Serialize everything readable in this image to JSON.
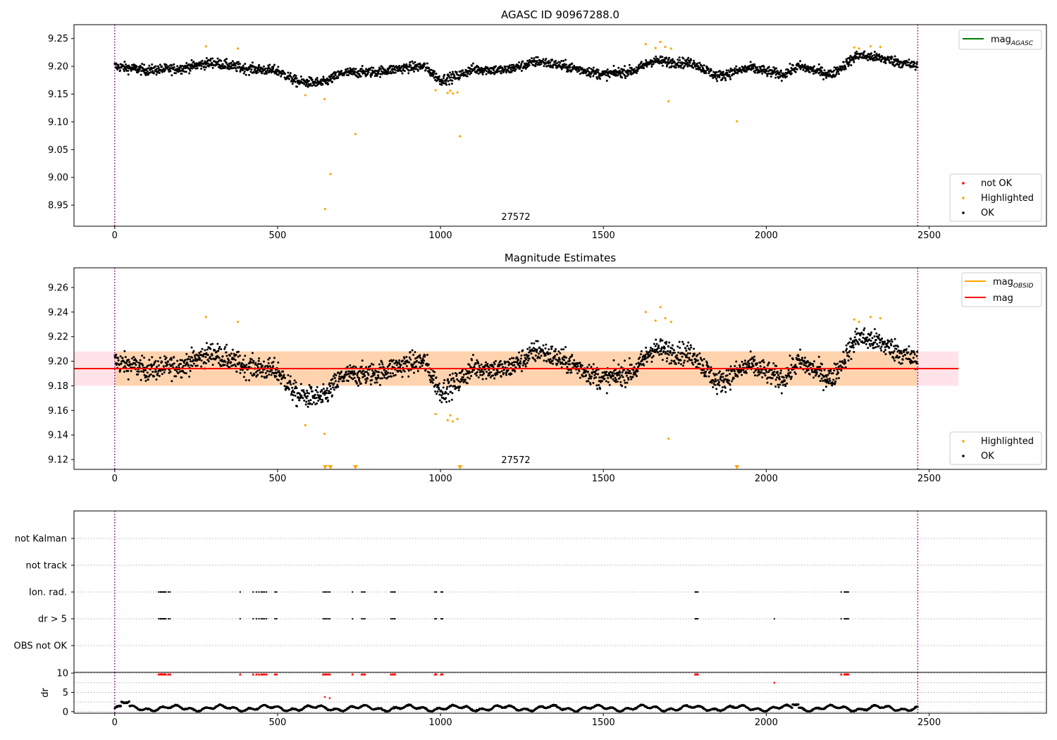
{
  "chart_data": [
    {
      "type": "scatter",
      "title": "AGASC ID 90967288.0",
      "xlim": [
        -125,
        2860
      ],
      "ylim": [
        8.912,
        9.275
      ],
      "xticks": [
        "0",
        "500",
        "1000",
        "1500",
        "2000",
        "2500"
      ],
      "yticks": [
        "8.95",
        "9.00",
        "9.05",
        "9.10",
        "9.15",
        "9.20",
        "9.25"
      ],
      "annotation": "27572",
      "vlines": [
        0,
        2465
      ],
      "legend_lines": [
        {
          "name": "mag_AGASC",
          "color": "#008000"
        }
      ],
      "legend_points": [
        {
          "name": "not OK",
          "color": "#ff0000"
        },
        {
          "name": "Highlighted",
          "color": "#ffa500"
        },
        {
          "name": "OK",
          "color": "#000000"
        }
      ],
      "ok_baseline": [
        [
          0,
          9.2
        ],
        [
          100,
          9.193
        ],
        [
          200,
          9.196
        ],
        [
          300,
          9.207
        ],
        [
          400,
          9.196
        ],
        [
          500,
          9.192
        ],
        [
          560,
          9.172
        ],
        [
          640,
          9.17
        ],
        [
          700,
          9.188
        ],
        [
          800,
          9.19
        ],
        [
          900,
          9.198
        ],
        [
          950,
          9.2
        ],
        [
          1000,
          9.175
        ],
        [
          1050,
          9.182
        ],
        [
          1100,
          9.195
        ],
        [
          1200,
          9.193
        ],
        [
          1300,
          9.209
        ],
        [
          1400,
          9.198
        ],
        [
          1500,
          9.185
        ],
        [
          1600,
          9.193
        ],
        [
          1650,
          9.21
        ],
        [
          1700,
          9.208
        ],
        [
          1780,
          9.205
        ],
        [
          1850,
          9.182
        ],
        [
          1950,
          9.197
        ],
        [
          2050,
          9.185
        ],
        [
          2100,
          9.2
        ],
        [
          2200,
          9.185
        ],
        [
          2280,
          9.22
        ],
        [
          2350,
          9.215
        ],
        [
          2465,
          9.2
        ]
      ],
      "ok_scatter_sd": 0.009,
      "highlighted": [
        [
          280,
          9.236
        ],
        [
          378,
          9.232
        ],
        [
          585,
          9.148
        ],
        [
          644,
          9.141
        ],
        [
          646,
          8.943
        ],
        [
          662,
          9.006
        ],
        [
          739,
          9.078
        ],
        [
          985,
          9.157
        ],
        [
          1022,
          9.152
        ],
        [
          1030,
          9.156
        ],
        [
          1038,
          9.151
        ],
        [
          1052,
          9.153
        ],
        [
          1060,
          9.074
        ],
        [
          1630,
          9.24
        ],
        [
          1660,
          9.233
        ],
        [
          1675,
          9.244
        ],
        [
          1690,
          9.235
        ],
        [
          1700,
          9.137
        ],
        [
          1708,
          9.232
        ],
        [
          1910,
          9.101
        ],
        [
          2270,
          9.234
        ],
        [
          2285,
          9.232
        ],
        [
          2320,
          9.236
        ],
        [
          2350,
          9.235
        ]
      ]
    },
    {
      "type": "scatter",
      "title": "Magnitude Estimates",
      "xlim": [
        -125,
        2860
      ],
      "ylim": [
        9.112,
        9.276
      ],
      "xticks": [
        "0",
        "500",
        "1000",
        "1500",
        "2000",
        "2500"
      ],
      "yticks": [
        "9.12",
        "9.14",
        "9.16",
        "9.18",
        "9.20",
        "9.22",
        "9.24",
        "9.26"
      ],
      "annotation": "27572",
      "vlines": [
        0,
        2465
      ],
      "mag": 9.194,
      "band_outer": [
        9.18,
        9.208
      ],
      "band_outer_x": [
        -125,
        2590
      ],
      "band_inner_x": [
        0,
        2465
      ],
      "legend_lines": [
        {
          "name": "mag_OBSID",
          "color": "#ffa500"
        },
        {
          "name": "mag",
          "color": "#ff0000"
        }
      ],
      "legend_points": [
        {
          "name": "Highlighted",
          "color": "#ffa500"
        },
        {
          "name": "OK",
          "color": "#000000"
        }
      ],
      "lower_limits_x": [
        646,
        662,
        739,
        1060,
        1910
      ]
    },
    {
      "type": "scatter",
      "title": "",
      "xlim": [
        -125,
        2860
      ],
      "ycategories": [
        "not Kalman",
        "not track",
        "Ion. rad.",
        "dr > 5",
        "OBS not OK"
      ],
      "flag_x": [
        135,
        140,
        143,
        146,
        150,
        153,
        157,
        165,
        170,
        385,
        425,
        435,
        443,
        450,
        455,
        460,
        466,
        492,
        497,
        640,
        645,
        650,
        655,
        660,
        730,
        758,
        763,
        768,
        848,
        853,
        858,
        860,
        983,
        987,
        1002,
        1006,
        1782,
        1786,
        1790,
        2230,
        2240,
        2244,
        2248,
        2252
      ],
      "extra_dr_x": [
        2025
      ]
    },
    {
      "type": "scatter",
      "title": "",
      "xlim": [
        -125,
        2860
      ],
      "ylim": [
        -0.4,
        10.2
      ],
      "ylabel": "dr",
      "xticks": [
        "0",
        "500",
        "1000",
        "1500",
        "2000",
        "2500"
      ],
      "yticks": [
        "0",
        "5",
        "10"
      ],
      "red_points": [
        [
          2025,
          7.5
        ],
        [
          645,
          3.8
        ],
        [
          660,
          3.5
        ]
      ],
      "red_top_value": 9.7
    }
  ]
}
